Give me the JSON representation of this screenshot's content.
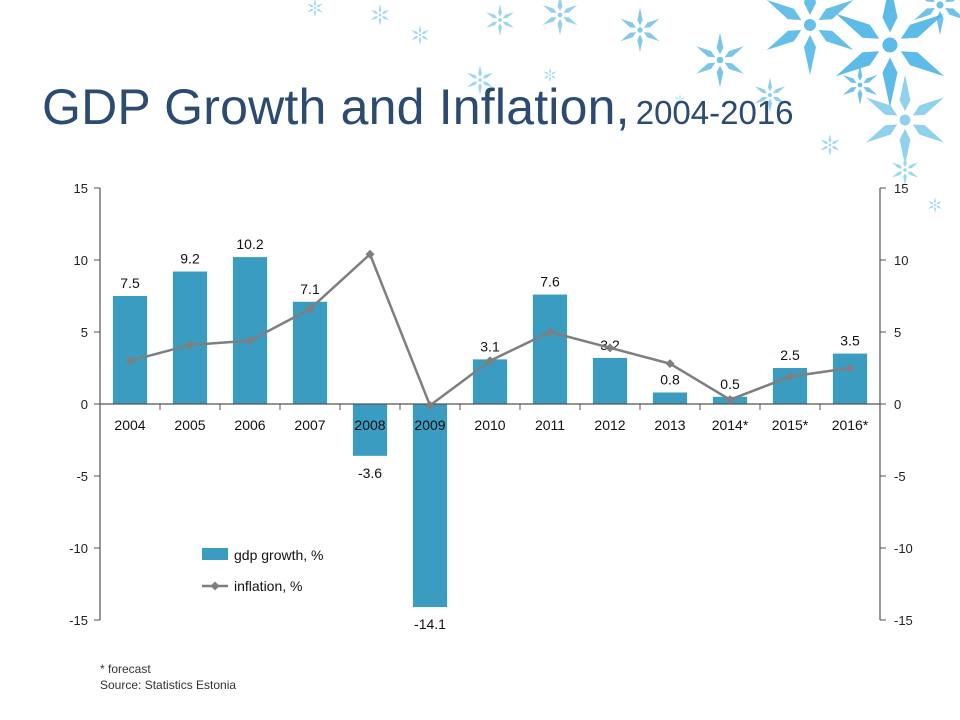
{
  "slide": {
    "title_main": "GDP Growth and Inflation,",
    "title_years": "2004-2016",
    "footnote": "* forecast",
    "source": "Source: Statistics Estonia"
  },
  "chart_data": {
    "type": "bar",
    "categories": [
      "2004",
      "2005",
      "2006",
      "2007",
      "2008",
      "2009",
      "2010",
      "2011",
      "2012",
      "2013",
      "2014*",
      "2015*",
      "2016*"
    ],
    "series": [
      {
        "name": "gdp growth, %",
        "type": "bar",
        "color": "#3a9cc0",
        "values": [
          7.5,
          9.2,
          10.2,
          7.1,
          -3.6,
          -14.1,
          3.1,
          7.6,
          3.2,
          0.8,
          0.5,
          2.5,
          3.5
        ],
        "labels": [
          "7.5",
          "9.2",
          "10.2",
          "7.1",
          "-3.6",
          "-14.1",
          "3.1",
          "7.6",
          "3.2",
          "0.8",
          "0.5",
          "2.5",
          "3.5"
        ]
      },
      {
        "name": "inflation, %",
        "type": "line",
        "color": "#7f7f7f",
        "values": [
          3.0,
          4.1,
          4.4,
          6.6,
          10.4,
          -0.1,
          3.0,
          5.0,
          3.9,
          2.8,
          0.3,
          1.9,
          2.5
        ]
      }
    ],
    "ylim": [
      -15,
      15
    ],
    "yticks": [
      "15",
      "10",
      "5",
      "0",
      "-5",
      "-10",
      "-15"
    ],
    "secondary_yticks": [
      "15",
      "10",
      "5",
      "0",
      "-5",
      "-10",
      "-15"
    ],
    "legend_position": "bottom-left inside plot",
    "grid": false
  }
}
